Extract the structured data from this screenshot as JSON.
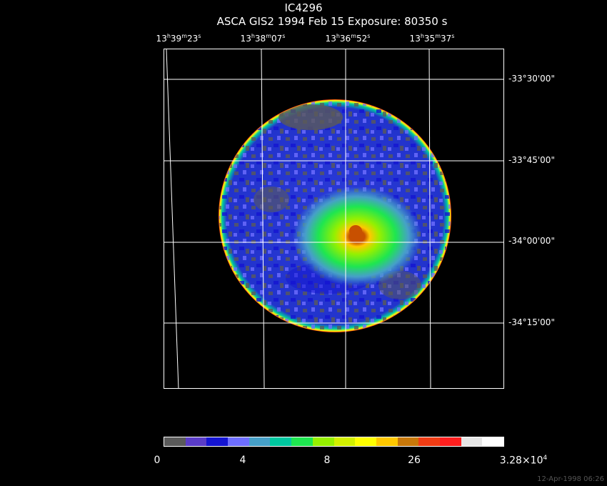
{
  "title": "IC4296",
  "subtitle": "ASCA GIS2    1994 Feb 15     Exposure: 80350 s",
  "ra_ticks": [
    {
      "h": "13",
      "m": "39",
      "s": "23"
    },
    {
      "h": "13",
      "m": "38",
      "s": "07"
    },
    {
      "h": "13",
      "m": "36",
      "s": "52"
    },
    {
      "h": "13",
      "m": "35",
      "s": "37"
    }
  ],
  "dec_ticks": [
    "-33°30'00\"",
    "-33°45'00\"",
    "-34°00'00\"",
    "-34°15'00\""
  ],
  "colorbar": {
    "labels": [
      "0",
      "4",
      "8",
      "26",
      "3.28×10"
    ],
    "last_exponent": "4",
    "colors": [
      "#5a5a5a",
      "#5a3cc8",
      "#1414d2",
      "#6e6eff",
      "#46a0c8",
      "#00c8a0",
      "#1ee650",
      "#96f000",
      "#d2f000",
      "#ffff00",
      "#ffc800",
      "#c8780a",
      "#f03c14",
      "#ff1e1e",
      "#e6e6e6",
      "#ffffff"
    ]
  },
  "timestamp": "12-Apr-1998 06:26"
}
